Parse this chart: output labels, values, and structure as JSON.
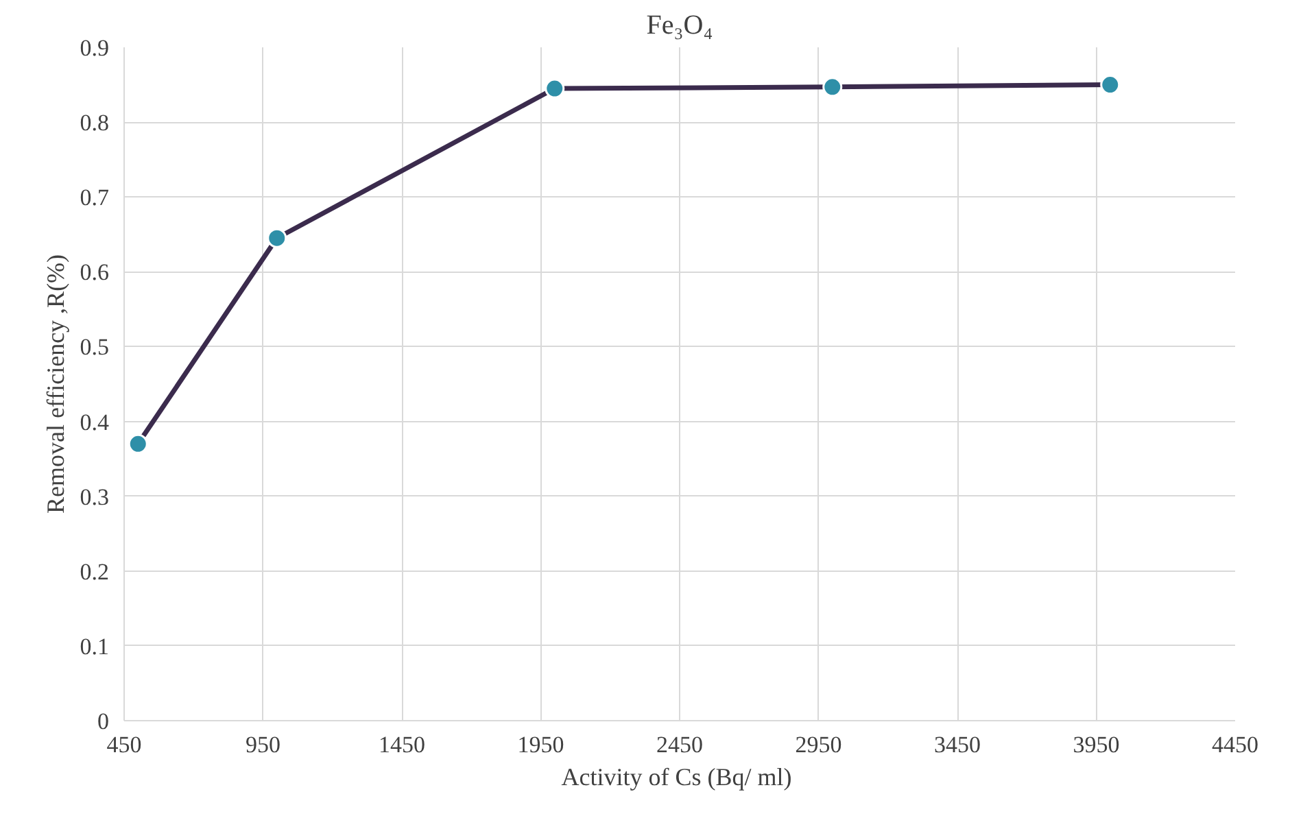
{
  "chart_data": {
    "type": "line",
    "title": "Fe₃O₄",
    "xlabel": "Activity of Cs  (Bq/ ml)",
    "ylabel": "Removal efficiency ,R(%)",
    "x": [
      500,
      1000,
      2000,
      3000,
      4000
    ],
    "series": [
      {
        "color": "#3b2b4d",
        "colors": [
          "#2e8fa8",
          "#2e8fa8",
          "#2e8fa8",
          "#2e8fa8",
          "#2e8fa8"
        ],
        "values": [
          0.37,
          0.645,
          0.845,
          0.847,
          0.85
        ]
      }
    ],
    "xlim": [
      450,
      4450
    ],
    "xticks": [
      450,
      950,
      1450,
      1950,
      2450,
      2950,
      3450,
      3950,
      4450
    ],
    "ylim": [
      0,
      0.9
    ],
    "yticks": [
      0,
      0.1,
      0.2,
      0.3,
      0.4,
      0.5,
      0.6,
      0.7,
      0.8,
      0.9
    ],
    "grid": true,
    "marker": "circle",
    "line_style": "solid"
  }
}
